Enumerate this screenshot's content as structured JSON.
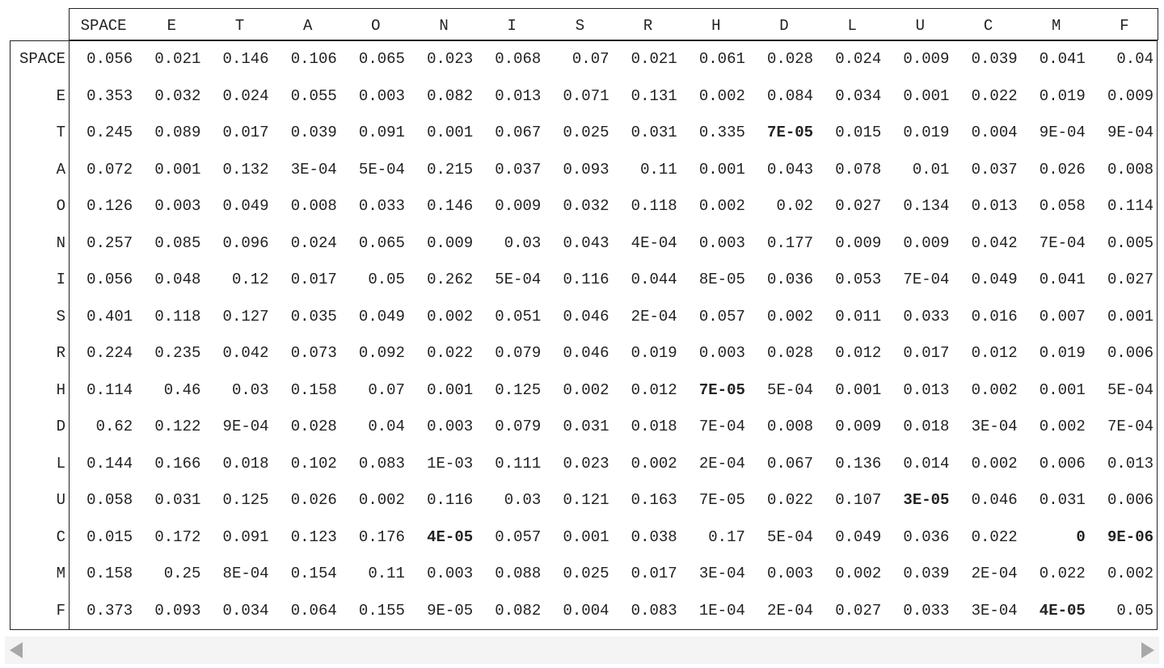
{
  "columns": [
    "SPACE",
    "E",
    "T",
    "A",
    "O",
    "N",
    "I",
    "S",
    "R",
    "H",
    "D",
    "L",
    "U",
    "C",
    "M",
    "F"
  ],
  "rows": [
    {
      "label": "SPACE",
      "values": [
        "0.056",
        "0.021",
        "0.146",
        "0.106",
        "0.065",
        "0.023",
        "0.068",
        "0.07",
        "0.021",
        "0.061",
        "0.028",
        "0.024",
        "0.009",
        "0.039",
        "0.041",
        "0.04"
      ],
      "bold": []
    },
    {
      "label": "E",
      "values": [
        "0.353",
        "0.032",
        "0.024",
        "0.055",
        "0.003",
        "0.082",
        "0.013",
        "0.071",
        "0.131",
        "0.002",
        "0.084",
        "0.034",
        "0.001",
        "0.022",
        "0.019",
        "0.009"
      ],
      "bold": []
    },
    {
      "label": "T",
      "values": [
        "0.245",
        "0.089",
        "0.017",
        "0.039",
        "0.091",
        "0.001",
        "0.067",
        "0.025",
        "0.031",
        "0.335",
        "7E-05",
        "0.015",
        "0.019",
        "0.004",
        "9E-04",
        "9E-04"
      ],
      "bold": [
        10
      ]
    },
    {
      "label": "A",
      "values": [
        "0.072",
        "0.001",
        "0.132",
        "3E-04",
        "5E-04",
        "0.215",
        "0.037",
        "0.093",
        "0.11",
        "0.001",
        "0.043",
        "0.078",
        "0.01",
        "0.037",
        "0.026",
        "0.008"
      ],
      "bold": []
    },
    {
      "label": "O",
      "values": [
        "0.126",
        "0.003",
        "0.049",
        "0.008",
        "0.033",
        "0.146",
        "0.009",
        "0.032",
        "0.118",
        "0.002",
        "0.02",
        "0.027",
        "0.134",
        "0.013",
        "0.058",
        "0.114"
      ],
      "bold": []
    },
    {
      "label": "N",
      "values": [
        "0.257",
        "0.085",
        "0.096",
        "0.024",
        "0.065",
        "0.009",
        "0.03",
        "0.043",
        "4E-04",
        "0.003",
        "0.177",
        "0.009",
        "0.009",
        "0.042",
        "7E-04",
        "0.005"
      ],
      "bold": []
    },
    {
      "label": "I",
      "values": [
        "0.056",
        "0.048",
        "0.12",
        "0.017",
        "0.05",
        "0.262",
        "5E-04",
        "0.116",
        "0.044",
        "8E-05",
        "0.036",
        "0.053",
        "7E-04",
        "0.049",
        "0.041",
        "0.027"
      ],
      "bold": []
    },
    {
      "label": "S",
      "values": [
        "0.401",
        "0.118",
        "0.127",
        "0.035",
        "0.049",
        "0.002",
        "0.051",
        "0.046",
        "2E-04",
        "0.057",
        "0.002",
        "0.011",
        "0.033",
        "0.016",
        "0.007",
        "0.001"
      ],
      "bold": []
    },
    {
      "label": "R",
      "values": [
        "0.224",
        "0.235",
        "0.042",
        "0.073",
        "0.092",
        "0.022",
        "0.079",
        "0.046",
        "0.019",
        "0.003",
        "0.028",
        "0.012",
        "0.017",
        "0.012",
        "0.019",
        "0.006"
      ],
      "bold": []
    },
    {
      "label": "H",
      "values": [
        "0.114",
        "0.46",
        "0.03",
        "0.158",
        "0.07",
        "0.001",
        "0.125",
        "0.002",
        "0.012",
        "7E-05",
        "5E-04",
        "0.001",
        "0.013",
        "0.002",
        "0.001",
        "5E-04"
      ],
      "bold": [
        9
      ]
    },
    {
      "label": "D",
      "values": [
        "0.62",
        "0.122",
        "9E-04",
        "0.028",
        "0.04",
        "0.003",
        "0.079",
        "0.031",
        "0.018",
        "7E-04",
        "0.008",
        "0.009",
        "0.018",
        "3E-04",
        "0.002",
        "7E-04"
      ],
      "bold": []
    },
    {
      "label": "L",
      "values": [
        "0.144",
        "0.166",
        "0.018",
        "0.102",
        "0.083",
        "1E-03",
        "0.111",
        "0.023",
        "0.002",
        "2E-04",
        "0.067",
        "0.136",
        "0.014",
        "0.002",
        "0.006",
        "0.013"
      ],
      "bold": []
    },
    {
      "label": "U",
      "values": [
        "0.058",
        "0.031",
        "0.125",
        "0.026",
        "0.002",
        "0.116",
        "0.03",
        "0.121",
        "0.163",
        "7E-05",
        "0.022",
        "0.107",
        "3E-05",
        "0.046",
        "0.031",
        "0.006"
      ],
      "bold": [
        12
      ]
    },
    {
      "label": "C",
      "values": [
        "0.015",
        "0.172",
        "0.091",
        "0.123",
        "0.176",
        "4E-05",
        "0.057",
        "0.001",
        "0.038",
        "0.17",
        "5E-04",
        "0.049",
        "0.036",
        "0.022",
        "0",
        "9E-06"
      ],
      "bold": [
        5,
        14,
        15
      ]
    },
    {
      "label": "M",
      "values": [
        "0.158",
        "0.25",
        "8E-04",
        "0.154",
        "0.11",
        "0.003",
        "0.088",
        "0.025",
        "0.017",
        "3E-04",
        "0.003",
        "0.002",
        "0.039",
        "2E-04",
        "0.022",
        "0.002"
      ],
      "bold": []
    },
    {
      "label": "F",
      "values": [
        "0.373",
        "0.093",
        "0.034",
        "0.064",
        "0.155",
        "9E-05",
        "0.082",
        "0.004",
        "0.083",
        "1E-04",
        "2E-04",
        "0.027",
        "0.033",
        "3E-04",
        "4E-05",
        "0.05"
      ],
      "bold": [
        14
      ]
    }
  ],
  "scrollbar": {
    "left_icon": "triangle-left-icon",
    "right_icon": "triangle-right-icon"
  }
}
